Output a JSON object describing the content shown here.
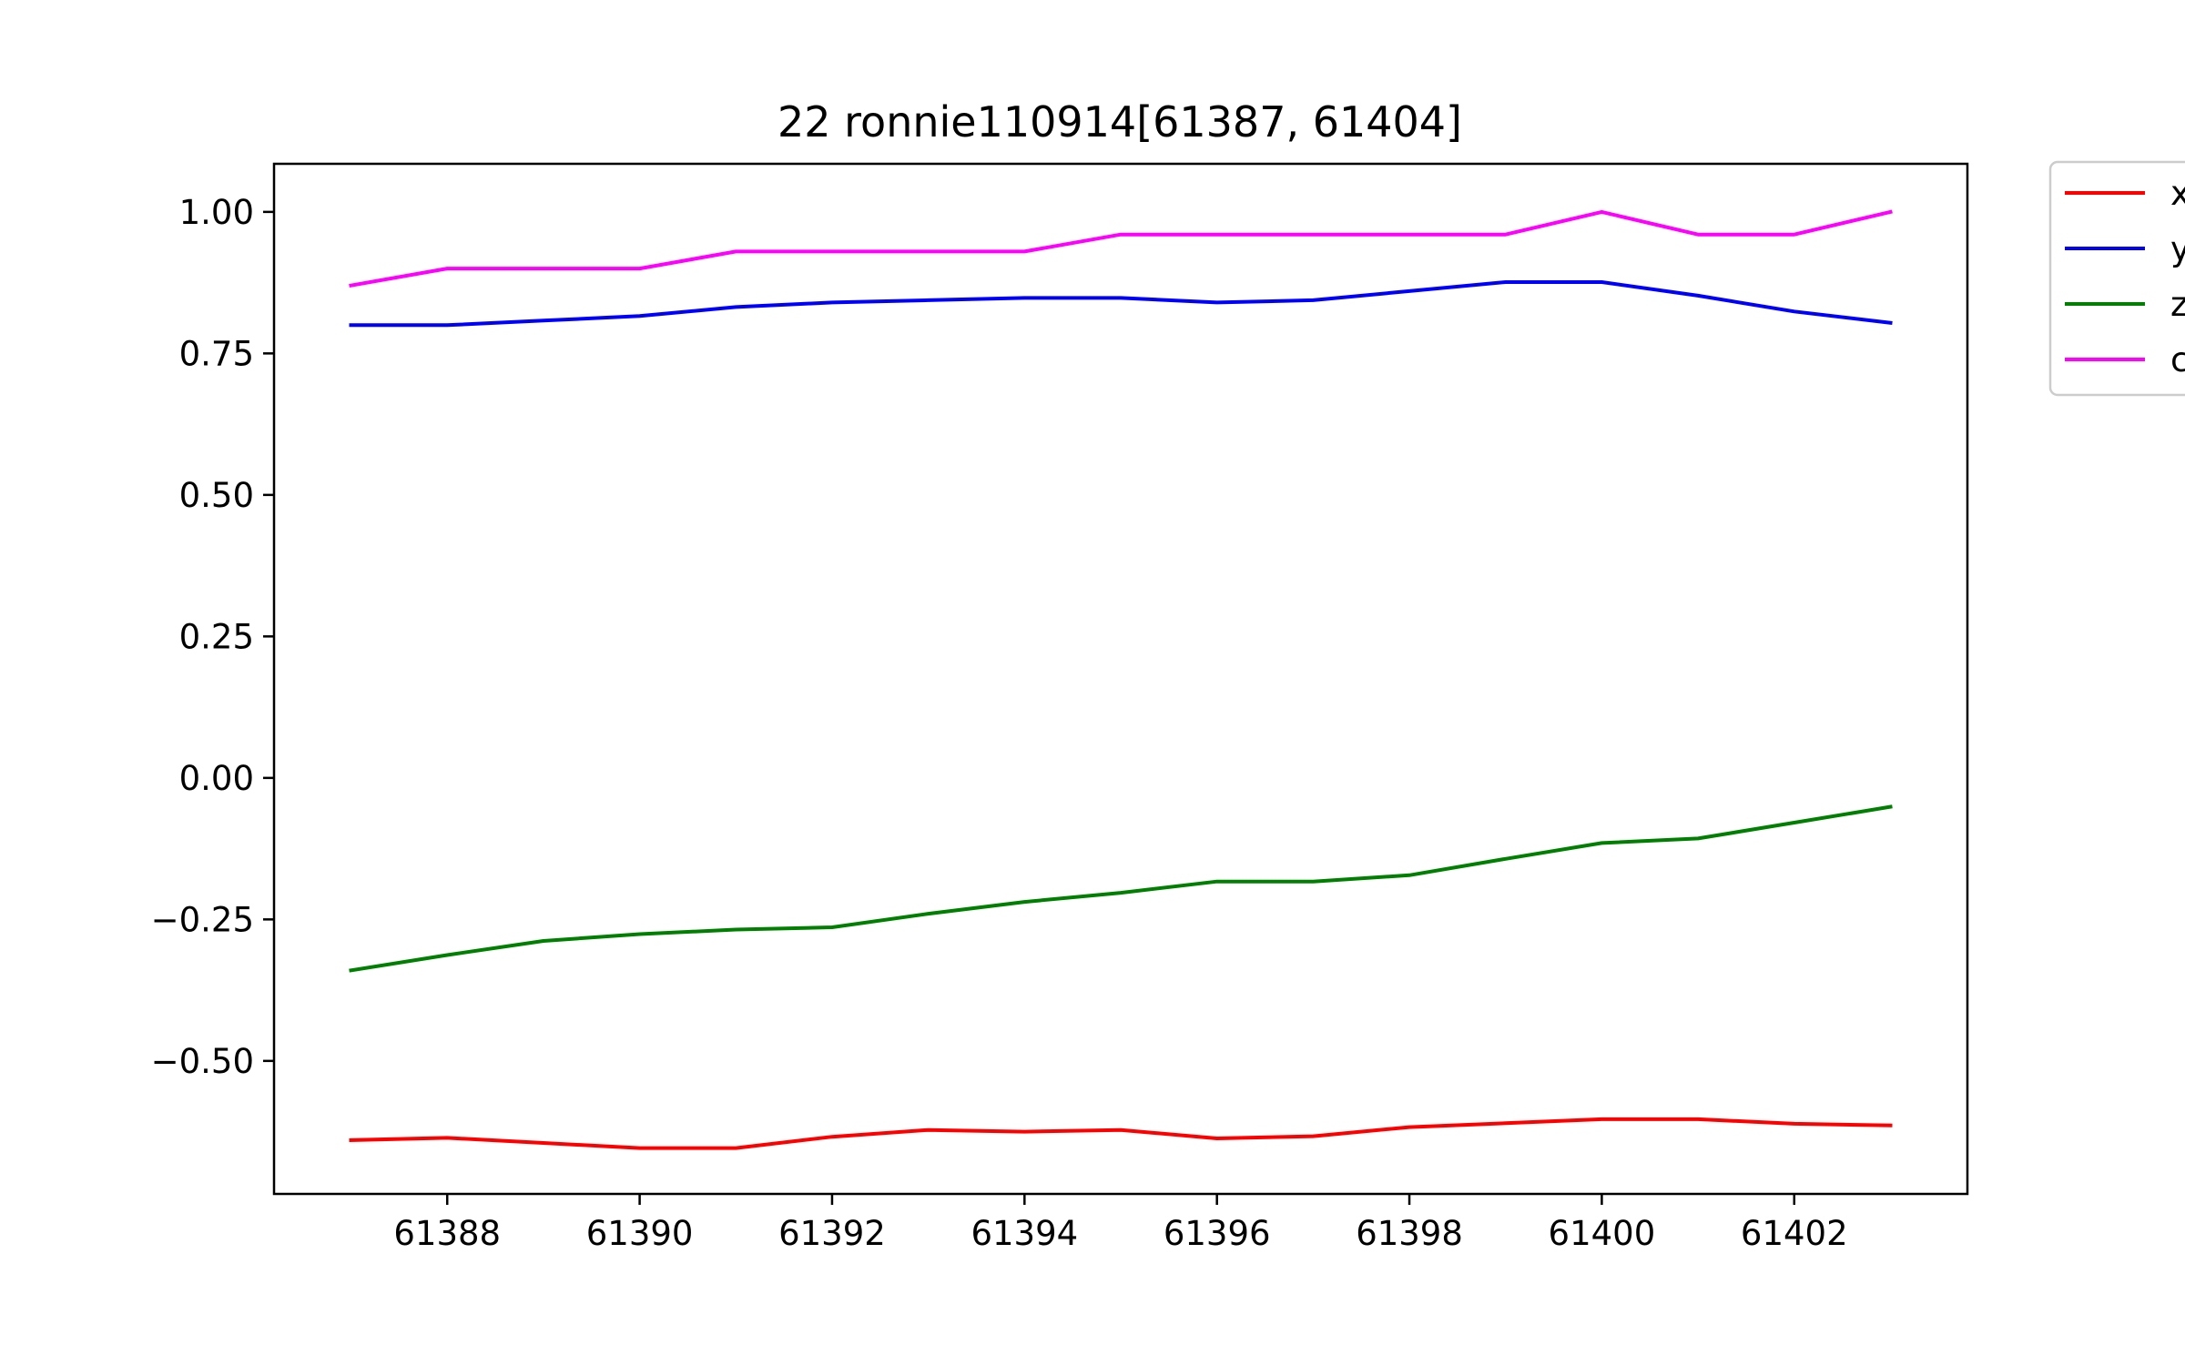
{
  "chart_data": {
    "type": "line",
    "title": "22 ronnie110914[61387, 61404]",
    "xlabel": "",
    "ylabel": "",
    "xlim": [
      61386.2,
      61403.8
    ],
    "ylim": [
      -0.735,
      1.085
    ],
    "x_ticks": [
      61388,
      61390,
      61392,
      61394,
      61396,
      61398,
      61400,
      61402
    ],
    "x_tick_labels": [
      "61388",
      "61390",
      "61392",
      "61394",
      "61396",
      "61398",
      "61400",
      "61402"
    ],
    "y_ticks": [
      1.0,
      0.75,
      0.5,
      0.25,
      0.0,
      -0.25,
      -0.5
    ],
    "y_tick_labels": [
      "1.00",
      "0.75",
      "0.50",
      "0.25",
      "0.00",
      "−0.25",
      "−0.50"
    ],
    "grid": false,
    "legend": "outside-top-right",
    "x": [
      61387,
      61388,
      61389,
      61390,
      61391,
      61392,
      61393,
      61394,
      61395,
      61396,
      61397,
      61398,
      61399,
      61400,
      61401,
      61402,
      61403
    ],
    "series": [
      {
        "name": "x",
        "color": "#ff0000",
        "values": [
          -0.64,
          -0.636,
          -0.645,
          -0.654,
          -0.654,
          -0.634,
          -0.622,
          -0.625,
          -0.622,
          -0.637,
          -0.633,
          -0.617,
          -0.61,
          -0.603,
          -0.603,
          -0.611,
          -0.614
        ]
      },
      {
        "name": "y",
        "color": "#0000ff",
        "values": [
          0.8,
          0.8,
          0.808,
          0.816,
          0.832,
          0.84,
          0.844,
          0.848,
          0.848,
          0.84,
          0.844,
          0.86,
          0.876,
          0.876,
          0.852,
          0.824,
          0.804
        ]
      },
      {
        "name": "z",
        "color": "#008000",
        "values": [
          -0.34,
          -0.313,
          -0.288,
          -0.276,
          -0.268,
          -0.264,
          -0.24,
          -0.219,
          -0.203,
          -0.183,
          -0.183,
          -0.172,
          -0.143,
          -0.115,
          -0.107,
          -0.079,
          -0.051
        ]
      },
      {
        "name": "c",
        "color": "#ff00ff",
        "values": [
          0.87,
          0.9,
          0.9,
          0.9,
          0.93,
          0.93,
          0.93,
          0.93,
          0.96,
          0.96,
          0.96,
          0.96,
          0.96,
          1.0,
          0.96,
          0.96,
          1.0
        ]
      }
    ]
  }
}
